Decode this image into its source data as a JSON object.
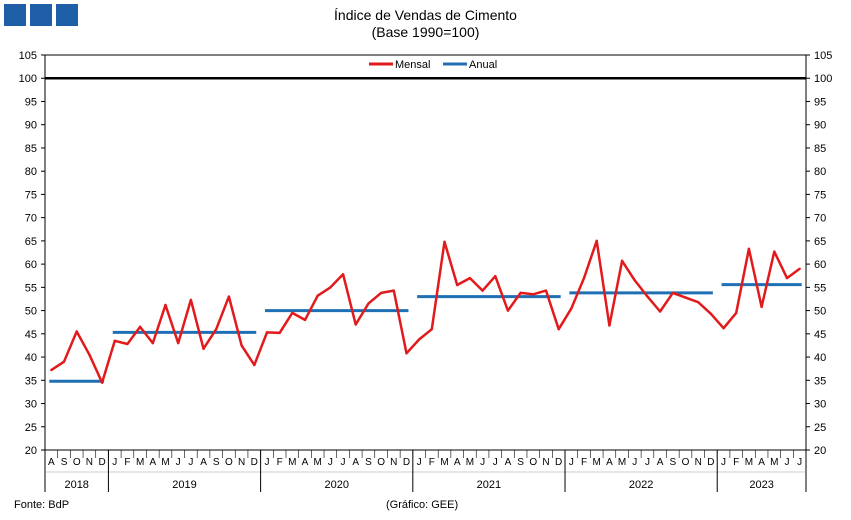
{
  "header": {
    "logo_icon": "institution-logo-blocks",
    "title_line1": "Índice de Vendas de Cimento",
    "title_line2": "(Base 1990=100)"
  },
  "footer": {
    "source": "Fonte: BdP",
    "credit": "(Gráfico: GEE)"
  },
  "chart_data": {
    "type": "line",
    "title": "Índice de Vendas de Cimento (Base 1990=100)",
    "ylim": [
      20,
      105
    ],
    "y_ticks": [
      20,
      25,
      30,
      35,
      40,
      45,
      50,
      55,
      60,
      65,
      70,
      75,
      80,
      85,
      90,
      95,
      100,
      105
    ],
    "y_axes": [
      "left",
      "right"
    ],
    "legend_position": "top-center",
    "reference_line": {
      "value": 100,
      "color": "#000000"
    },
    "x_month_labels": [
      "A",
      "S",
      "O",
      "N",
      "D",
      "J",
      "F",
      "M",
      "A",
      "M",
      "J",
      "J",
      "A",
      "S",
      "O",
      "N",
      "D",
      "J",
      "F",
      "M",
      "A",
      "M",
      "J",
      "J",
      "A",
      "S",
      "O",
      "N",
      "D",
      "J",
      "F",
      "M",
      "A",
      "M",
      "J",
      "J",
      "A",
      "S",
      "O",
      "N",
      "D",
      "J",
      "F",
      "M",
      "A",
      "M",
      "J",
      "J",
      "A",
      "S",
      "O",
      "N",
      "D",
      "J",
      "F",
      "M",
      "A",
      "M",
      "J",
      "J"
    ],
    "year_groups": [
      {
        "year": "2018",
        "months": 5
      },
      {
        "year": "2019",
        "months": 12
      },
      {
        "year": "2020",
        "months": 12
      },
      {
        "year": "2021",
        "months": 12
      },
      {
        "year": "2022",
        "months": 12
      },
      {
        "year": "2023",
        "months": 7
      }
    ],
    "series": [
      {
        "name": "Mensal",
        "color": "#e31a1c",
        "values": [
          37.2,
          39.0,
          45.5,
          40.5,
          34.5,
          43.5,
          42.8,
          46.5,
          43.0,
          51.2,
          43.0,
          52.3,
          41.8,
          46.0,
          53.0,
          42.5,
          38.3,
          45.3,
          45.2,
          49.5,
          48.0,
          53.2,
          55.0,
          57.8,
          47.0,
          51.5,
          53.8,
          54.3,
          40.8,
          43.8,
          46.0,
          64.8,
          55.5,
          57.0,
          54.3,
          57.4,
          50.0,
          53.8,
          53.5,
          54.3,
          46.0,
          50.5,
          57.0,
          65.0,
          46.8,
          60.7,
          56.5,
          53.0,
          49.8,
          53.8,
          52.8,
          51.8,
          49.3,
          46.2,
          49.5,
          63.3,
          50.8,
          62.7,
          57.0,
          59.0
        ]
      },
      {
        "name": "Anual",
        "color": "#1f6fb4",
        "segments": [
          {
            "year": "2018",
            "value": 34.8
          },
          {
            "year": "2019",
            "value": 45.3
          },
          {
            "year": "2020",
            "value": 50.0
          },
          {
            "year": "2021",
            "value": 53.0
          },
          {
            "year": "2022",
            "value": 53.8
          },
          {
            "year": "2023",
            "value": 55.6
          }
        ]
      }
    ]
  }
}
